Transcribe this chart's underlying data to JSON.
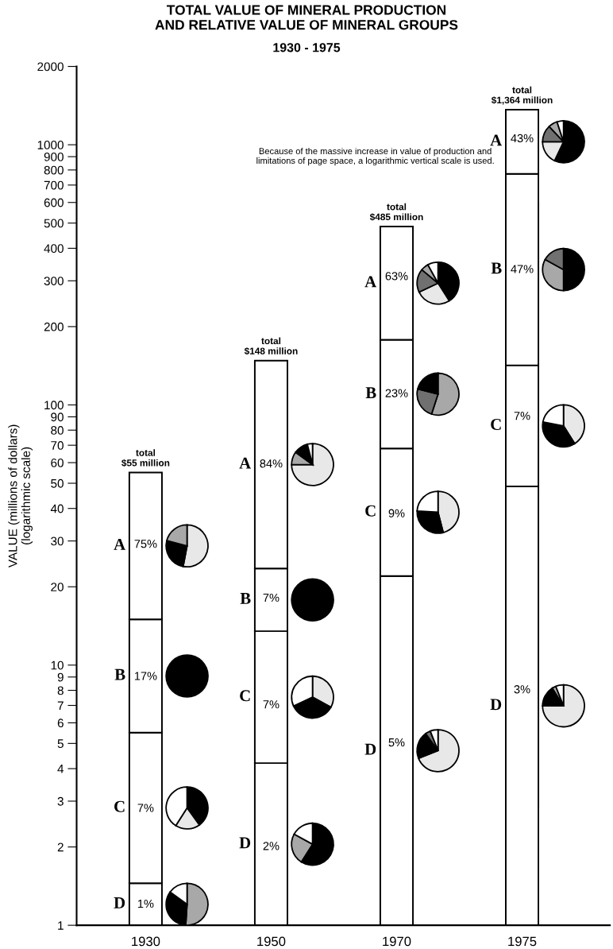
{
  "chart_data": [
    {
      "type": "bar",
      "title": "TOTAL VALUE OF MINERAL PRODUCTION\nAND RELATIVE VALUE OF MINERAL GROUPS",
      "subtitle": "1930 - 1975",
      "ylabel": "VALUE (millions of dollars)\n(logarithmic scale)",
      "categories": [
        "1930",
        "1950",
        "1970",
        "1975"
      ],
      "stacked": true,
      "log": true,
      "grid": false,
      "legend": false,
      "ylim": [
        1,
        2000
      ],
      "yticks": [
        1,
        2,
        3,
        4,
        5,
        6,
        7,
        8,
        9,
        10,
        20,
        30,
        40,
        50,
        60,
        70,
        80,
        90,
        100,
        200,
        300,
        400,
        500,
        600,
        700,
        800,
        900,
        1000,
        2000
      ],
      "series": [
        {
          "name": "D",
          "color": "#ffffff",
          "values": [
            1.45,
            4.2,
            22,
            48.6
          ]
        },
        {
          "name": "C",
          "color": "#ffffff",
          "values": [
            4.05,
            9.3,
            46,
            93.4
          ]
        },
        {
          "name": "B",
          "color": "#ffffff",
          "values": [
            9.5,
            10,
            110,
            631
          ]
        },
        {
          "name": "A",
          "color": "#ffffff",
          "values": [
            40,
            124.5,
            307,
            591
          ]
        }
      ],
      "totals": [
        "total\n$55 million",
        "total\n$148 million",
        "total\n$485 million",
        "total\n$1,364 million"
      ],
      "annotations": [
        {
          "text": "1%",
          "x": "1930",
          "y": 1.2
        },
        {
          "text": "7%",
          "x": "1930",
          "y": 2.8
        },
        {
          "text": "17%",
          "x": "1930",
          "y": 9
        },
        {
          "text": "75%",
          "x": "1930",
          "y": 29
        },
        {
          "text": "2%",
          "x": "1950",
          "y": 2
        },
        {
          "text": "7%",
          "x": "1950",
          "y": 7
        },
        {
          "text": "7%",
          "x": "1950",
          "y": 18
        },
        {
          "text": "84%",
          "x": "1950",
          "y": 59
        },
        {
          "text": "5%",
          "x": "1970",
          "y": 5
        },
        {
          "text": "9%",
          "x": "1970",
          "y": 38
        },
        {
          "text": "23%",
          "x": "1970",
          "y": 110
        },
        {
          "text": "63%",
          "x": "1970",
          "y": 310
        },
        {
          "text": "3%",
          "x": "1975",
          "y": 8
        },
        {
          "text": "7%",
          "x": "1975",
          "y": 90
        },
        {
          "text": "47%",
          "x": "1975",
          "y": 330
        },
        {
          "text": "43%",
          "x": "1975",
          "y": 1050
        },
        "Because of the massive increase in value of production and\nlimitations of page space, a logarithmic vertical scale is used."
      ]
    },
    {
      "type": "pie",
      "categories": [
        null,
        null,
        null
      ],
      "values": [
        53,
        26,
        21
      ],
      "colors": [
        "#e8e8e8",
        "#000000",
        "#a8a8a8"
      ]
    },
    {
      "type": "pie",
      "categories": [
        null
      ],
      "values": [
        100
      ],
      "colors": [
        "#000000"
      ]
    },
    {
      "type": "pie",
      "categories": [
        null,
        null,
        null
      ],
      "values": [
        40,
        19,
        41
      ],
      "colors": [
        "#000000",
        "#e8e8e8",
        "#ffffff"
      ]
    },
    {
      "type": "pie",
      "categories": [
        null,
        null,
        null
      ],
      "values": [
        51,
        34,
        15
      ],
      "colors": [
        "#a8a8a8",
        "#000000",
        "#ffffff"
      ]
    },
    {
      "type": "pie",
      "categories": [
        null,
        null,
        null,
        null
      ],
      "values": [
        75,
        10,
        11,
        4
      ],
      "colors": [
        "#e8e8e8",
        "#a8a8a8",
        "#000000",
        "#ffffff"
      ]
    },
    {
      "type": "pie",
      "categories": [
        null
      ],
      "values": [
        100
      ],
      "colors": [
        "#000000"
      ]
    },
    {
      "type": "pie",
      "categories": [
        null,
        null,
        null
      ],
      "values": [
        33,
        35,
        32
      ],
      "colors": [
        "#e8e8e8",
        "#000000",
        "#ffffff"
      ]
    },
    {
      "type": "pie",
      "categories": [
        null,
        null,
        null
      ],
      "values": [
        59,
        24,
        17
      ],
      "colors": [
        "#000000",
        "#a8a8a8",
        "#ffffff"
      ]
    },
    {
      "type": "pie",
      "categories": [
        null,
        null,
        null,
        null,
        null
      ],
      "values": [
        41,
        27,
        18,
        6,
        8
      ],
      "colors": [
        "#000000",
        "#e8e8e8",
        "#707070",
        "#a8a8a8",
        "#ffffff"
      ]
    },
    {
      "type": "pie",
      "categories": [
        null,
        null,
        null
      ],
      "values": [
        55,
        24,
        21
      ],
      "colors": [
        "#a8a8a8",
        "#707070",
        "#000000"
      ]
    },
    {
      "type": "pie",
      "categories": [
        null,
        null,
        null
      ],
      "values": [
        46,
        30,
        24
      ],
      "colors": [
        "#e8e8e8",
        "#000000",
        "#ffffff"
      ]
    },
    {
      "type": "pie",
      "categories": [
        null,
        null,
        null,
        null
      ],
      "values": [
        69,
        21,
        4,
        6
      ],
      "colors": [
        "#e8e8e8",
        "#000000",
        "#707070",
        "#ffffff"
      ]
    },
    {
      "type": "pie",
      "categories": [
        null,
        null,
        null,
        null,
        null
      ],
      "values": [
        57,
        18,
        13,
        7,
        5
      ],
      "colors": [
        "#000000",
        "#e8e8e8",
        "#707070",
        "#a8a8a8",
        "#ffffff"
      ]
    },
    {
      "type": "pie",
      "categories": [
        null,
        null,
        null
      ],
      "values": [
        50,
        33,
        17
      ],
      "colors": [
        "#000000",
        "#a8a8a8",
        "#707070"
      ]
    },
    {
      "type": "pie",
      "categories": [
        null,
        null,
        null
      ],
      "values": [
        41,
        37,
        22
      ],
      "colors": [
        "#e8e8e8",
        "#000000",
        "#ffffff"
      ]
    },
    {
      "type": "pie",
      "categories": [
        null,
        null,
        null,
        null
      ],
      "values": [
        75,
        16,
        3,
        6
      ],
      "colors": [
        "#e8e8e8",
        "#000000",
        "#a8a8a8",
        "#ffffff"
      ]
    }
  ]
}
